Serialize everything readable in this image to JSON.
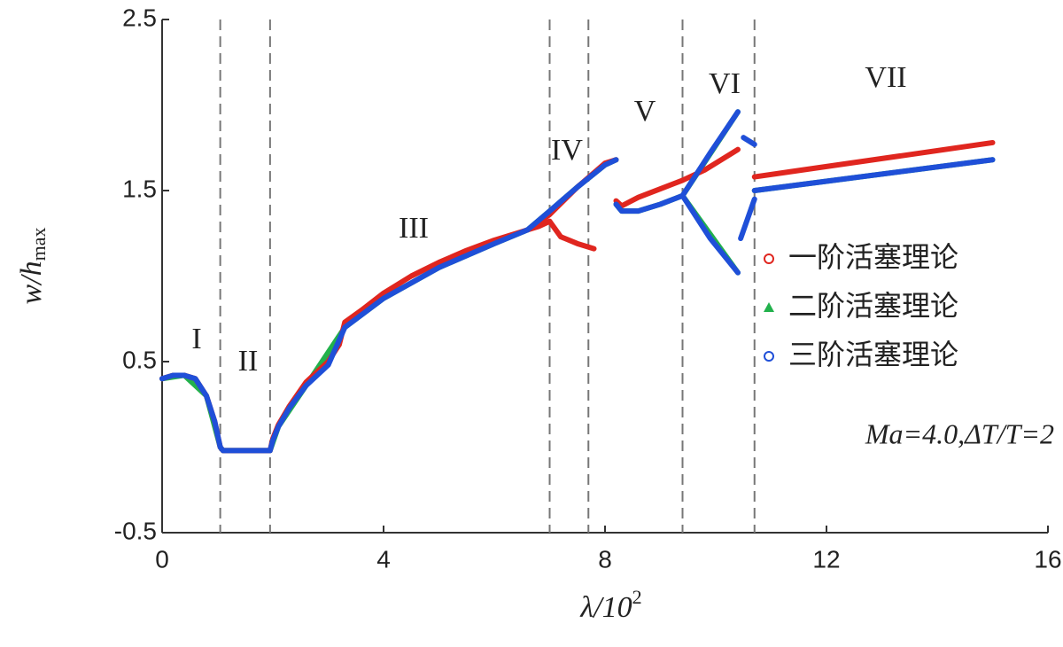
{
  "chart_data": {
    "type": "line",
    "xlabel": "λ/10",
    "xlabel_sup": "2",
    "ylabel": "w/h",
    "ylabel_sub": "max",
    "xlim": [
      0,
      16
    ],
    "xticks": [
      0,
      4,
      8,
      12,
      16
    ],
    "ylim": [
      -0.5,
      2.5
    ],
    "yticks": [
      2.5,
      1.5,
      0.5,
      -0.5
    ],
    "vlines": [
      1.05,
      1.95,
      7.0,
      7.7,
      9.4,
      10.7
    ],
    "regions": [
      "I",
      "II",
      "III",
      "IV",
      "V",
      "VI",
      "VII"
    ],
    "annotation": "Ma=4.0,ΔT/T=2",
    "series": [
      {
        "name": "一阶活塞理论",
        "color": "#e0261f",
        "marker": "circle",
        "segments": [
          {
            "x": [
              0,
              0.2,
              0.4,
              0.6,
              0.8,
              0.95,
              1.05,
              1.1,
              1.95,
              2.0,
              2.1,
              2.3,
              2.6,
              3.0,
              3.2,
              3.3,
              3.6,
              4,
              4.5,
              5,
              5.5,
              6,
              6.5,
              6.8,
              7.0
            ],
            "values": [
              0.4,
              0.42,
              0.42,
              0.4,
              0.3,
              0.15,
              0.0,
              -0.02,
              -0.02,
              0.05,
              0.13,
              0.24,
              0.38,
              0.5,
              0.6,
              0.73,
              0.8,
              0.9,
              1.0,
              1.08,
              1.15,
              1.21,
              1.26,
              1.29,
              1.32
            ]
          },
          {
            "x": [
              7.0,
              7.2,
              7.5,
              7.8
            ],
            "values": [
              1.32,
              1.23,
              1.19,
              1.16
            ]
          },
          {
            "x": [
              6.7,
              7.0,
              7.5,
              8.0,
              8.2
            ],
            "values": [
              1.29,
              1.36,
              1.52,
              1.66,
              1.68
            ]
          },
          {
            "x": [
              8.2,
              8.3,
              8.6,
              9.0,
              9.4,
              9.8,
              10.3,
              10.4
            ],
            "values": [
              1.44,
              1.41,
              1.46,
              1.51,
              1.56,
              1.62,
              1.72,
              1.74
            ]
          },
          {
            "x": [
              10.7,
              15.0
            ],
            "values": [
              1.58,
              1.78
            ]
          }
        ]
      },
      {
        "name": "二阶活塞理论",
        "color": "#22b14c",
        "marker": "triangle",
        "segments": [
          {
            "x": [
              0,
              0.4,
              0.8,
              1.05,
              1.1,
              1.95,
              2.1,
              2.6,
              3.3,
              4,
              5,
              6,
              6.6
            ],
            "values": [
              0.4,
              0.42,
              0.3,
              0.0,
              -0.02,
              -0.02,
              0.12,
              0.36,
              0.7,
              0.87,
              1.05,
              1.19,
              1.27
            ]
          },
          {
            "x": [
              6.6,
              7.0,
              7.5,
              8.0,
              8.2
            ],
            "values": [
              1.27,
              1.38,
              1.52,
              1.65,
              1.68
            ]
          },
          {
            "x": [
              8.2,
              8.3,
              8.6,
              9.0,
              9.4,
              10.4
            ],
            "values": [
              1.42,
              1.38,
              1.38,
              1.42,
              1.47,
              1.96
            ]
          },
          {
            "x": [
              9.4,
              10.4
            ],
            "values": [
              1.47,
              1.02
            ]
          },
          {
            "x": [
              10.7,
              15.0
            ],
            "values": [
              1.5,
              1.68
            ]
          }
        ]
      },
      {
        "name": "三阶活塞理论",
        "color": "#1f4fd8",
        "marker": "circle",
        "segments": [
          {
            "x": [
              0,
              0.2,
              0.4,
              0.6,
              0.8,
              0.95,
              1.05,
              1.1,
              1.95,
              2.0,
              2.1,
              2.3,
              2.6,
              3.0,
              3.3,
              4,
              5,
              6,
              6.6
            ],
            "values": [
              0.4,
              0.42,
              0.42,
              0.4,
              0.3,
              0.15,
              0.0,
              -0.02,
              -0.02,
              0.04,
              0.12,
              0.23,
              0.36,
              0.48,
              0.7,
              0.87,
              1.05,
              1.19,
              1.27
            ]
          },
          {
            "x": [
              6.6,
              7.0,
              7.5,
              8.0,
              8.2
            ],
            "values": [
              1.27,
              1.38,
              1.52,
              1.65,
              1.68
            ]
          },
          {
            "x": [
              8.2,
              8.3,
              8.6,
              9.0,
              9.4,
              9.9,
              10.4
            ],
            "values": [
              1.42,
              1.38,
              1.38,
              1.42,
              1.47,
              1.72,
              1.96
            ]
          },
          {
            "x": [
              9.4,
              9.9,
              10.4
            ],
            "values": [
              1.47,
              1.22,
              1.02
            ]
          },
          {
            "x": [
              10.5,
              10.7
            ],
            "values": [
              1.81,
              1.77
            ]
          },
          {
            "x": [
              10.45,
              10.7
            ],
            "values": [
              1.22,
              1.45
            ]
          },
          {
            "x": [
              10.7,
              15.0
            ],
            "values": [
              1.5,
              1.68
            ]
          }
        ]
      }
    ]
  }
}
